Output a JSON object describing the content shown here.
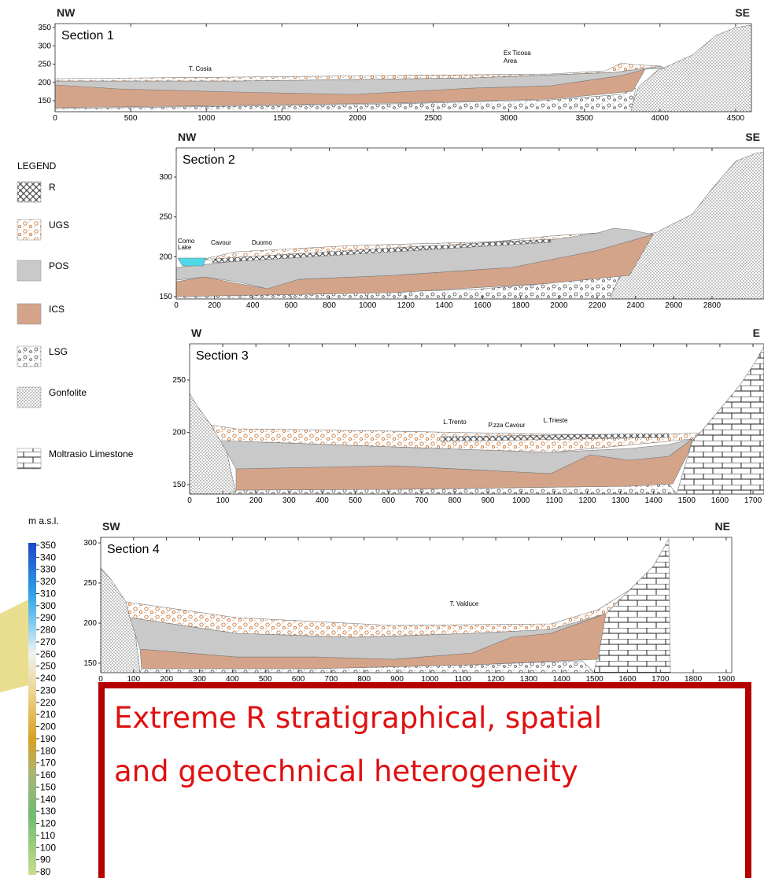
{
  "sections": [
    {
      "title": "Section 1",
      "left": "NW",
      "right": "SE",
      "yticks": [
        150,
        200,
        250,
        300,
        350
      ],
      "xticks": [
        0,
        500,
        1000,
        1500,
        2000,
        2500,
        3000,
        3500,
        4000,
        4500
      ],
      "labels": [
        "T. Cosia",
        "Ex Ticosa",
        "Area"
      ]
    },
    {
      "title": "Section 2",
      "left": "NW",
      "right": "SE",
      "yticks": [
        150,
        200,
        250,
        300
      ],
      "xticks": [
        0,
        200,
        400,
        600,
        800,
        1000,
        1200,
        1400,
        1600,
        1800,
        2000,
        2200,
        2400,
        2600,
        2800
      ],
      "labels": [
        "Como",
        "Lake",
        "Cavour",
        "Duomo"
      ]
    },
    {
      "title": "Section 3",
      "left": "W",
      "right": "E",
      "yticks": [
        150,
        200,
        250
      ],
      "xticks": [
        0,
        100,
        200,
        300,
        400,
        500,
        600,
        700,
        800,
        900,
        1000,
        1100,
        1200,
        1300,
        1400,
        1500,
        1600,
        1700
      ],
      "labels": [
        "L.Trento",
        "P.zza Cavour",
        "L.Trieste"
      ]
    },
    {
      "title": "Section 4",
      "left": "SW",
      "right": "NE",
      "yticks": [
        150,
        200,
        250,
        300
      ],
      "xticks": [
        0,
        100,
        200,
        300,
        400,
        500,
        600,
        700,
        800,
        900,
        1000,
        1100,
        1200,
        1300,
        1400,
        1500,
        1600,
        1700,
        1800,
        1900
      ],
      "labels": [
        "T. Valduce"
      ]
    }
  ],
  "legend": {
    "title": "LEGEND",
    "items": [
      "R",
      "UGS",
      "POS",
      "ICS",
      "LSG",
      "Gonfolite",
      "Moltrasio Limestone"
    ]
  },
  "colorbar": {
    "unit": "m a.s.l.",
    "ticks": [
      350,
      340,
      330,
      320,
      310,
      300,
      290,
      280,
      270,
      260,
      250,
      240,
      230,
      220,
      210,
      200,
      190,
      180,
      170,
      160,
      150,
      140,
      130,
      120,
      110,
      100,
      90,
      80
    ]
  },
  "callout": {
    "lines": [
      "Extreme R stratigraphical, spatial",
      "and geotechnical heterogeneity"
    ]
  }
}
